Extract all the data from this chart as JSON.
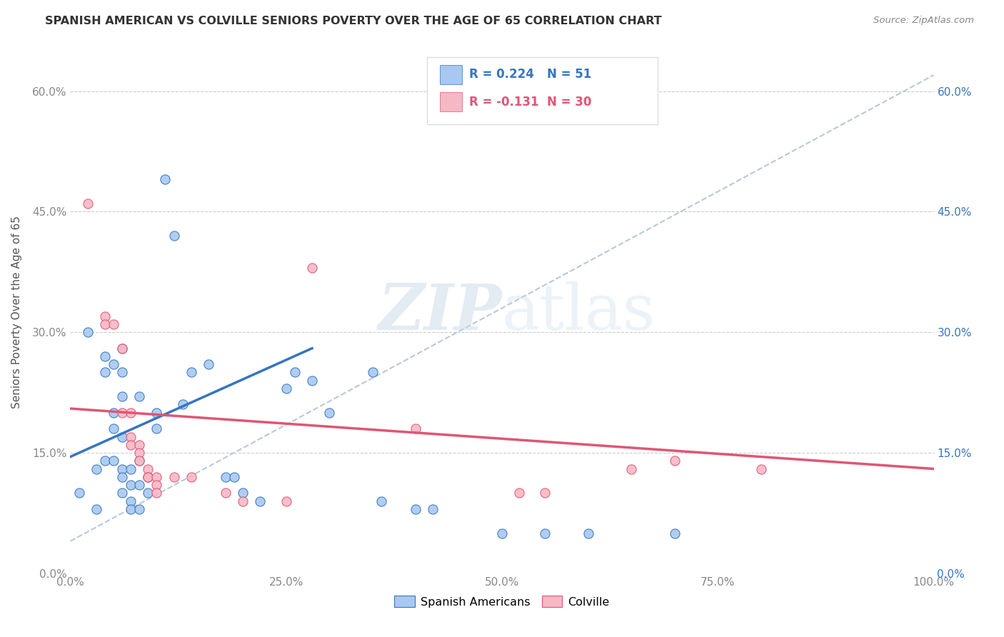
{
  "title": "SPANISH AMERICAN VS COLVILLE SENIORS POVERTY OVER THE AGE OF 65 CORRELATION CHART",
  "source": "Source: ZipAtlas.com",
  "ylabel": "Seniors Poverty Over the Age of 65",
  "watermark_zip": "ZIP",
  "watermark_atlas": "atlas",
  "xlim": [
    0.0,
    1.0
  ],
  "ylim": [
    0.0,
    0.65
  ],
  "xticks": [
    0.0,
    0.25,
    0.5,
    0.75,
    1.0
  ],
  "xtick_labels": [
    "0.0%",
    "25.0%",
    "50.0%",
    "75.0%",
    "100.0%"
  ],
  "ytick_positions": [
    0.0,
    0.15,
    0.3,
    0.45,
    0.6
  ],
  "ytick_labels": [
    "0.0%",
    "15.0%",
    "30.0%",
    "45.0%",
    "60.0%"
  ],
  "legend1_r": "R = 0.224",
  "legend1_n": "N = 51",
  "legend2_r": "R = -0.131",
  "legend2_n": "N = 30",
  "legend_sublabel1": "Spanish Americans",
  "legend_sublabel2": "Colville",
  "blue_color": "#a8c8f0",
  "pink_color": "#f5b8c4",
  "blue_line_color": "#3575c0",
  "pink_line_color": "#e05575",
  "dashed_line_color": "#b8c8d8",
  "r_value_color": "#3575c0",
  "n_value_color": "#333333",
  "r_value_color2": "#e05575",
  "blue_scatter": [
    [
      0.01,
      0.1
    ],
    [
      0.02,
      0.3
    ],
    [
      0.03,
      0.13
    ],
    [
      0.03,
      0.08
    ],
    [
      0.04,
      0.27
    ],
    [
      0.04,
      0.25
    ],
    [
      0.04,
      0.14
    ],
    [
      0.05,
      0.26
    ],
    [
      0.05,
      0.2
    ],
    [
      0.05,
      0.18
    ],
    [
      0.05,
      0.14
    ],
    [
      0.06,
      0.28
    ],
    [
      0.06,
      0.25
    ],
    [
      0.06,
      0.22
    ],
    [
      0.06,
      0.17
    ],
    [
      0.06,
      0.13
    ],
    [
      0.06,
      0.12
    ],
    [
      0.06,
      0.1
    ],
    [
      0.07,
      0.13
    ],
    [
      0.07,
      0.11
    ],
    [
      0.07,
      0.09
    ],
    [
      0.07,
      0.08
    ],
    [
      0.08,
      0.22
    ],
    [
      0.08,
      0.14
    ],
    [
      0.08,
      0.11
    ],
    [
      0.08,
      0.08
    ],
    [
      0.09,
      0.12
    ],
    [
      0.09,
      0.1
    ],
    [
      0.1,
      0.2
    ],
    [
      0.1,
      0.18
    ],
    [
      0.11,
      0.49
    ],
    [
      0.12,
      0.42
    ],
    [
      0.13,
      0.21
    ],
    [
      0.14,
      0.25
    ],
    [
      0.16,
      0.26
    ],
    [
      0.18,
      0.12
    ],
    [
      0.19,
      0.12
    ],
    [
      0.2,
      0.1
    ],
    [
      0.22,
      0.09
    ],
    [
      0.25,
      0.23
    ],
    [
      0.26,
      0.25
    ],
    [
      0.28,
      0.24
    ],
    [
      0.3,
      0.2
    ],
    [
      0.35,
      0.25
    ],
    [
      0.36,
      0.09
    ],
    [
      0.4,
      0.08
    ],
    [
      0.42,
      0.08
    ],
    [
      0.5,
      0.05
    ],
    [
      0.55,
      0.05
    ],
    [
      0.6,
      0.05
    ],
    [
      0.7,
      0.05
    ]
  ],
  "pink_scatter": [
    [
      0.02,
      0.46
    ],
    [
      0.04,
      0.32
    ],
    [
      0.04,
      0.31
    ],
    [
      0.05,
      0.31
    ],
    [
      0.06,
      0.28
    ],
    [
      0.06,
      0.2
    ],
    [
      0.07,
      0.2
    ],
    [
      0.07,
      0.17
    ],
    [
      0.07,
      0.16
    ],
    [
      0.08,
      0.16
    ],
    [
      0.08,
      0.15
    ],
    [
      0.08,
      0.14
    ],
    [
      0.09,
      0.13
    ],
    [
      0.09,
      0.12
    ],
    [
      0.09,
      0.12
    ],
    [
      0.1,
      0.12
    ],
    [
      0.1,
      0.11
    ],
    [
      0.1,
      0.1
    ],
    [
      0.12,
      0.12
    ],
    [
      0.14,
      0.12
    ],
    [
      0.18,
      0.1
    ],
    [
      0.2,
      0.09
    ],
    [
      0.25,
      0.09
    ],
    [
      0.28,
      0.38
    ],
    [
      0.4,
      0.18
    ],
    [
      0.52,
      0.1
    ],
    [
      0.55,
      0.1
    ],
    [
      0.65,
      0.13
    ],
    [
      0.7,
      0.14
    ],
    [
      0.8,
      0.13
    ]
  ],
  "blue_line_x": [
    0.0,
    0.28
  ],
  "blue_line_y": [
    0.145,
    0.28
  ],
  "pink_line_x": [
    0.0,
    1.0
  ],
  "pink_line_y": [
    0.205,
    0.13
  ],
  "dashed_line_x": [
    0.0,
    1.0
  ],
  "dashed_line_y": [
    0.04,
    0.62
  ]
}
